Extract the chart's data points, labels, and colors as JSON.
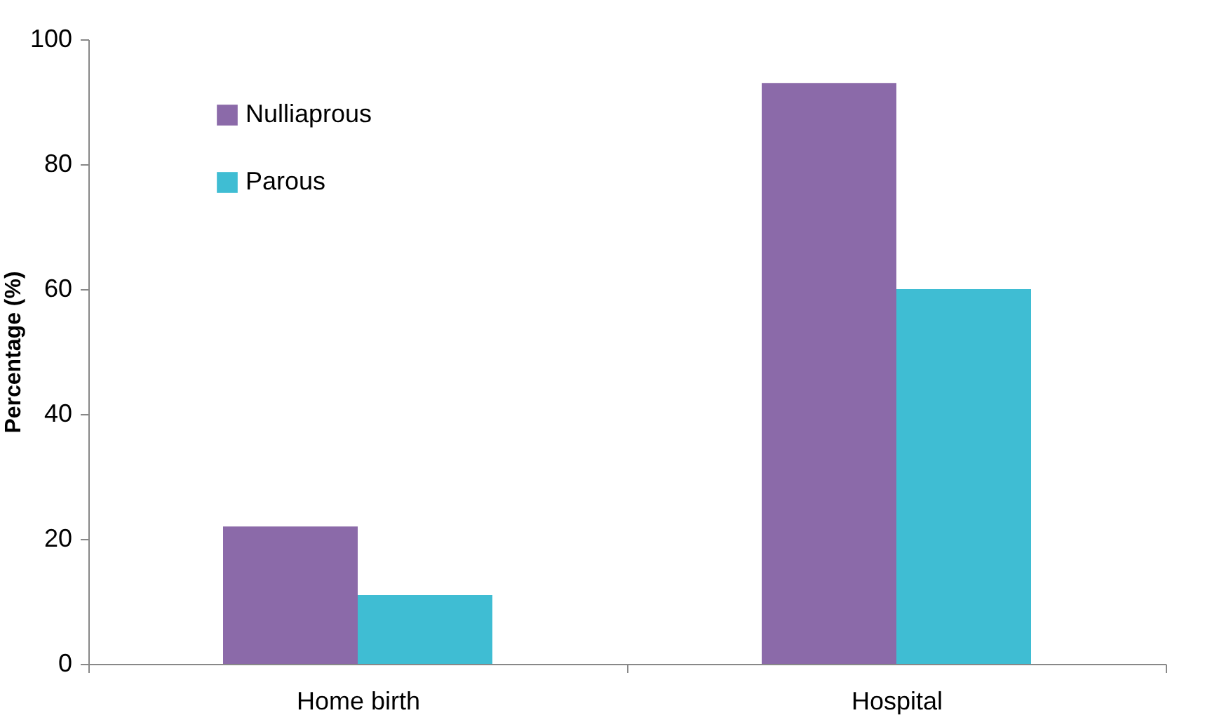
{
  "chart_data": {
    "type": "bar",
    "ylabel": "Percentage (%)",
    "categories": [
      "Home birth",
      "Hospital"
    ],
    "series": [
      {
        "name": "Nulliaprous",
        "color": "#8b6aa9",
        "values": [
          22,
          93
        ]
      },
      {
        "name": "Parous",
        "color": "#3fbdd3",
        "values": [
          11,
          60
        ]
      }
    ],
    "ylim": [
      0,
      100
    ],
    "yticks": [
      0,
      20,
      40,
      60,
      80,
      100
    ],
    "grid": false,
    "legend": "top left"
  }
}
